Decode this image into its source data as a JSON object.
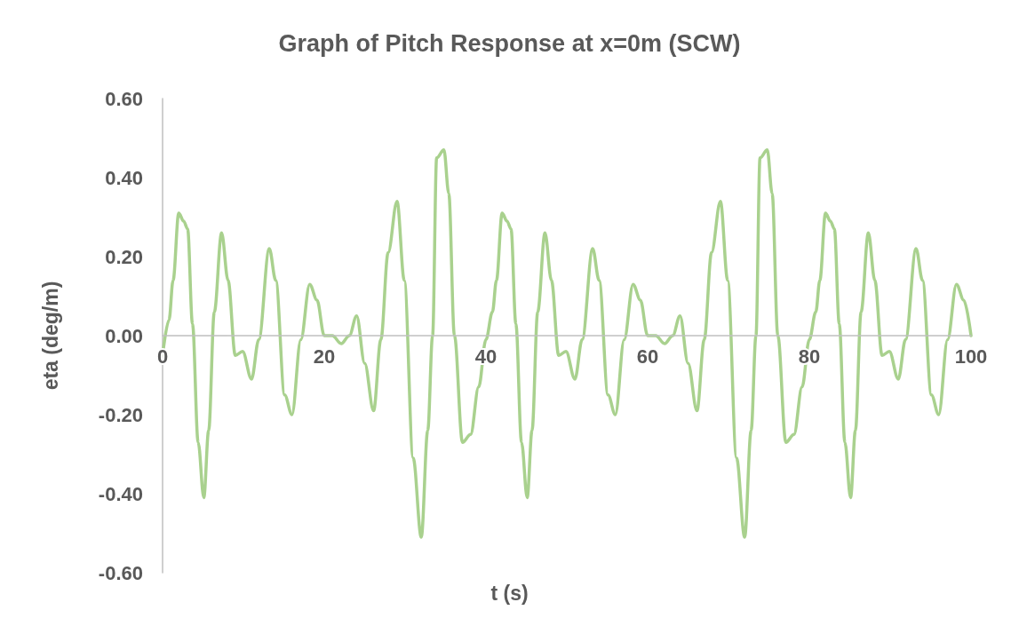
{
  "chart_data": {
    "type": "line",
    "title": "Graph of Pitch Response at x=0m (SCW)",
    "xlabel": "t (s)",
    "ylabel": "eta (deg/m)",
    "xlim": [
      0,
      100
    ],
    "xticks": [
      0,
      20,
      40,
      60,
      80,
      100
    ],
    "ylim": [
      -0.6,
      0.6
    ],
    "yticks": [
      {
        "value": -0.6,
        "label": "-0.60"
      },
      {
        "value": -0.4,
        "label": "-0.40"
      },
      {
        "value": -0.2,
        "label": "-0.20"
      },
      {
        "value": 0,
        "label": "0.00"
      },
      {
        "value": 0.2,
        "label": "0.20"
      },
      {
        "value": 0.4,
        "label": "0.40"
      },
      {
        "value": 0.6,
        "label": "0.60"
      }
    ],
    "grid": false,
    "marker": "none",
    "line_style": "solid",
    "series": [
      {
        "color": "#a9d18e",
        "x": [
          0,
          0.8,
          1.3,
          2.0,
          2.6,
          3.1,
          3.7,
          4.4,
          5.1,
          5.7,
          6.4,
          7.3,
          8.1,
          9.0,
          9.9,
          11.0,
          11.9,
          13.2,
          14.0,
          15.1,
          16.0,
          17.1,
          18.2,
          19.1,
          20.0,
          21.0,
          22.1,
          23.1,
          24.0,
          25.0,
          26.1,
          27.0,
          27.9,
          29.0,
          29.9,
          31.0,
          32.0,
          32.8,
          33.4,
          33.9,
          34.8,
          35.4,
          36.1,
          37.1,
          38.1,
          39.1,
          40.0,
          40.8,
          41.3,
          42.0,
          42.6,
          43.1,
          43.7,
          44.4,
          45.1,
          45.7,
          46.4,
          47.3,
          48.1,
          49.0,
          49.9,
          51.0,
          51.9,
          53.2,
          54.0,
          55.1,
          56.0,
          57.1,
          58.2,
          59.1,
          60.0,
          61.0,
          62.1,
          63.1,
          64.0,
          65.0,
          66.1,
          67.0,
          67.9,
          69.0,
          69.9,
          71.0,
          72.0,
          72.8,
          73.4,
          73.9,
          74.8,
          75.4,
          76.1,
          77.1,
          78.1,
          79.1,
          80.0,
          80.8,
          81.3,
          82.0,
          82.6,
          83.1,
          83.7,
          84.4,
          85.1,
          85.7,
          86.4,
          87.3,
          88.1,
          89.0,
          89.9,
          91.0,
          91.9,
          93.2,
          94.0,
          95.1,
          96.0,
          97.1,
          98.2,
          99.1,
          100.0
        ],
        "values": [
          -0.05,
          0.04,
          0.14,
          0.31,
          0.29,
          0.27,
          0.03,
          -0.27,
          -0.41,
          -0.24,
          0.06,
          0.26,
          0.14,
          -0.05,
          -0.04,
          -0.11,
          -0.01,
          0.22,
          0.14,
          -0.15,
          -0.2,
          -0.01,
          0.13,
          0.09,
          0.0,
          0.0,
          -0.02,
          0.0,
          0.05,
          -0.07,
          -0.19,
          -0.01,
          0.21,
          0.34,
          0.14,
          -0.31,
          -0.51,
          -0.24,
          0.0,
          0.45,
          0.47,
          0.36,
          0.0,
          -0.27,
          -0.25,
          -0.13,
          -0.01,
          0.06,
          0.14,
          0.31,
          0.29,
          0.27,
          0.03,
          -0.27,
          -0.41,
          -0.24,
          0.06,
          0.26,
          0.14,
          -0.05,
          -0.04,
          -0.11,
          -0.01,
          0.22,
          0.14,
          -0.15,
          -0.2,
          -0.01,
          0.13,
          0.09,
          0.0,
          0.0,
          -0.02,
          0.0,
          0.05,
          -0.07,
          -0.19,
          -0.01,
          0.21,
          0.34,
          0.14,
          -0.31,
          -0.51,
          -0.24,
          0.0,
          0.45,
          0.47,
          0.36,
          0.0,
          -0.27,
          -0.25,
          -0.13,
          -0.01,
          0.06,
          0.14,
          0.31,
          0.29,
          0.27,
          0.03,
          -0.27,
          -0.41,
          -0.24,
          0.06,
          0.26,
          0.14,
          -0.05,
          -0.04,
          -0.11,
          -0.01,
          0.22,
          0.14,
          -0.15,
          -0.2,
          -0.01,
          0.13,
          0.09,
          0.0
        ]
      }
    ]
  }
}
